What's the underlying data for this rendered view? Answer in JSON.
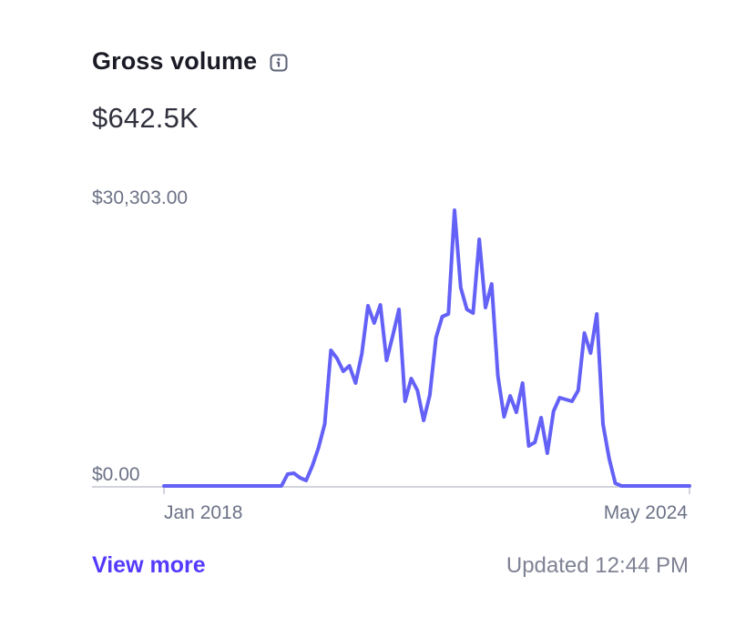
{
  "card": {
    "title": "Gross volume",
    "total": "$642.5K",
    "view_more_label": "View more",
    "updated_text": "Updated 12:44 PM"
  },
  "icons": {
    "info": "info-icon"
  },
  "colors": {
    "line": "#6461f7",
    "baseline": "#c4c6d0",
    "axis_text": "#6c7286",
    "link": "#533afd"
  },
  "chart_data": {
    "type": "line",
    "y_tick_labels": [
      "$30,303.00",
      "$0.00"
    ],
    "x_tick_labels": [
      "Jan 2018",
      "May 2024"
    ],
    "ylim": [
      0,
      30303
    ],
    "x_start": "2018-01",
    "x_end": "2024-05",
    "grid": false,
    "series": [
      {
        "values": [
          0,
          0,
          0,
          0,
          0,
          0,
          0,
          0,
          0,
          0,
          0,
          0,
          0,
          0,
          0,
          0,
          0,
          0,
          0,
          0,
          1300,
          1400,
          900,
          600,
          2200,
          4200,
          6800,
          14900,
          14000,
          12600,
          13200,
          11300,
          14500,
          19800,
          17900,
          19900,
          13800,
          16500,
          19400,
          9300,
          11800,
          10500,
          7200,
          10000,
          16300,
          18600,
          18900,
          30303,
          21800,
          19400,
          19000,
          27100,
          19600,
          22200,
          12100,
          7600,
          9900,
          8100,
          11300,
          4400,
          4800,
          7500,
          3600,
          8200,
          9700,
          9500,
          9300,
          10500,
          16800,
          14600,
          18900,
          6800,
          3000,
          300,
          0,
          0,
          0,
          0,
          0,
          0,
          0,
          0,
          0,
          0,
          0,
          0
        ]
      }
    ]
  }
}
